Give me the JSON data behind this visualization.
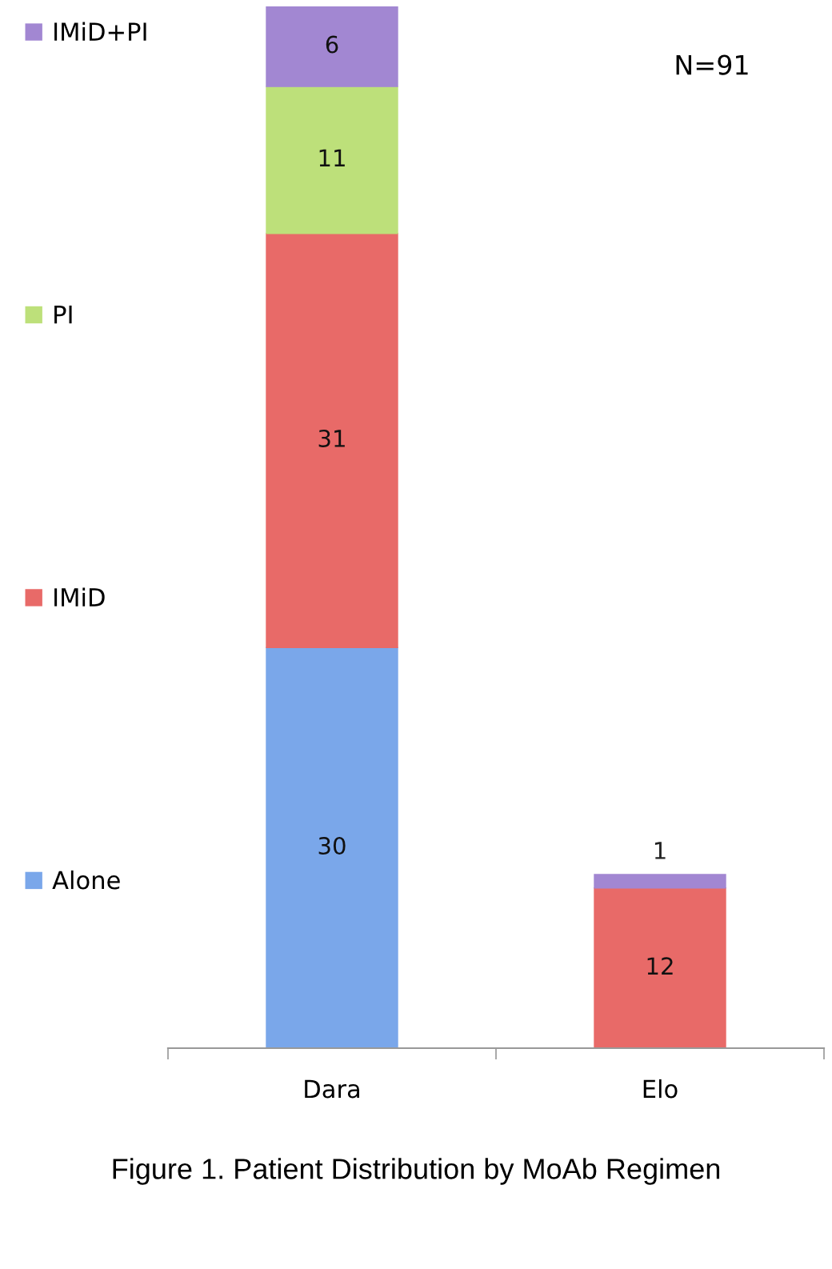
{
  "chart_data": {
    "type": "bar",
    "title": "Figure 1. Patient Distribution by MoAb Regimen",
    "categories": [
      "Dara",
      "Elo"
    ],
    "stacked": true,
    "data_labels": true,
    "legend": "left",
    "grid": false,
    "series": [
      {
        "name": "Alone",
        "color": "#7aa7ea",
        "values": [
          30,
          null
        ]
      },
      {
        "name": "IMiD",
        "color": "#e86a68",
        "values": [
          31,
          12
        ]
      },
      {
        "name": "PI",
        "color": "#bde07a",
        "values": [
          11,
          null
        ]
      },
      {
        "name": "IMiD+PI",
        "color": "#a287d2",
        "values": [
          6,
          1
        ]
      }
    ],
    "annotations": [
      "N=91"
    ]
  }
}
